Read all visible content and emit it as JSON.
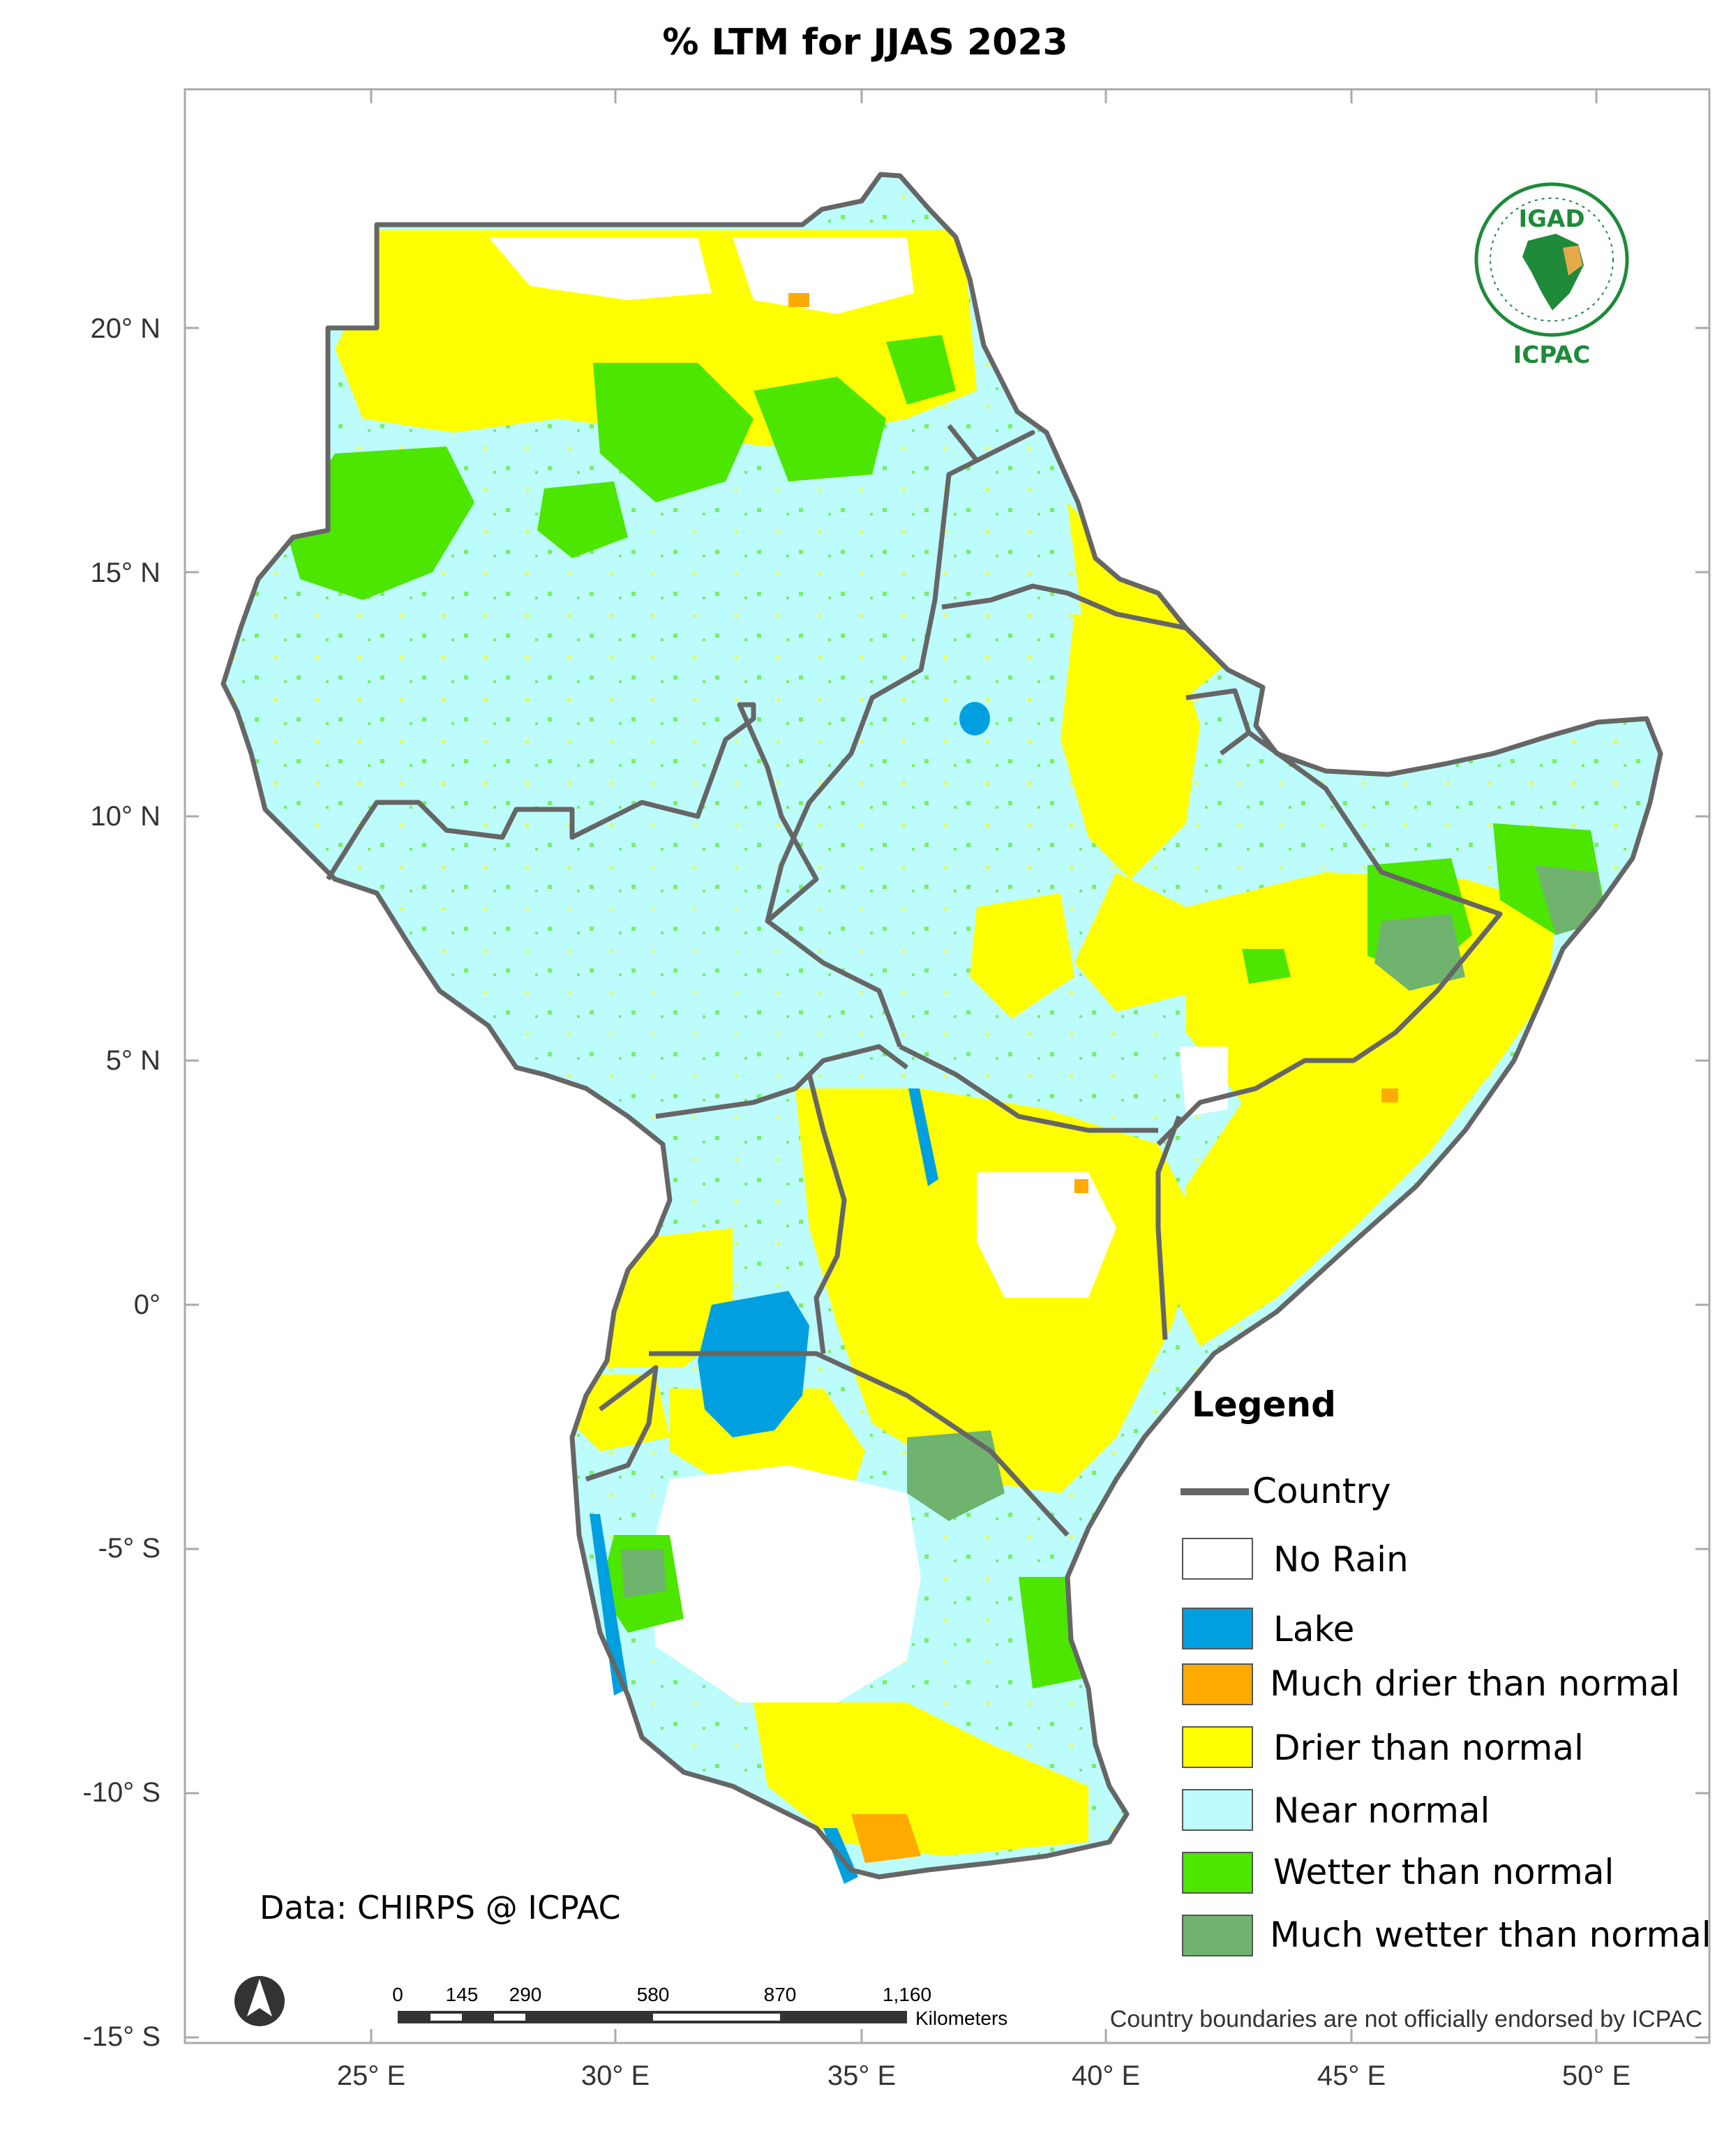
{
  "title": "% LTM  for  JJAS  2023",
  "axes": {
    "x_ticks": [
      "25° E",
      "30° E",
      "35° E",
      "40° E",
      "45° E",
      "50° E"
    ],
    "y_ticks": [
      "20° N",
      "15° N",
      "10° N",
      "5° N",
      "0°",
      "-5° S",
      "-10° S",
      "-15° S"
    ]
  },
  "legend": {
    "title": "Legend",
    "country_label": "Country",
    "items": [
      {
        "label": "No Rain",
        "color": "#ffffff"
      },
      {
        "label": "Lake",
        "color": "#00a0e0"
      },
      {
        "label": "Much drier than normal",
        "color": "#ffaa00"
      },
      {
        "label": "Drier than normal",
        "color": "#ffff00"
      },
      {
        "label": "Near normal",
        "color": "#bdfcfc"
      },
      {
        "label": "Wetter than normal",
        "color": "#4ce600"
      },
      {
        "label": "Much wetter than normal",
        "color": "#6fb36f"
      }
    ]
  },
  "credit": "Data: CHIRPS @ ICPAC",
  "disclaimer": "Country boundaries are not officially endorsed by ICPAC",
  "scale_bar": {
    "ticks": [
      "0",
      "145",
      "290",
      "580",
      "870",
      "1,160"
    ],
    "unit": "Kilometers"
  },
  "logo": {
    "top": "IGAD",
    "bottom": "ICPAC"
  },
  "colors": {
    "country_border": "#666666",
    "frame": "#aaaaaa"
  }
}
